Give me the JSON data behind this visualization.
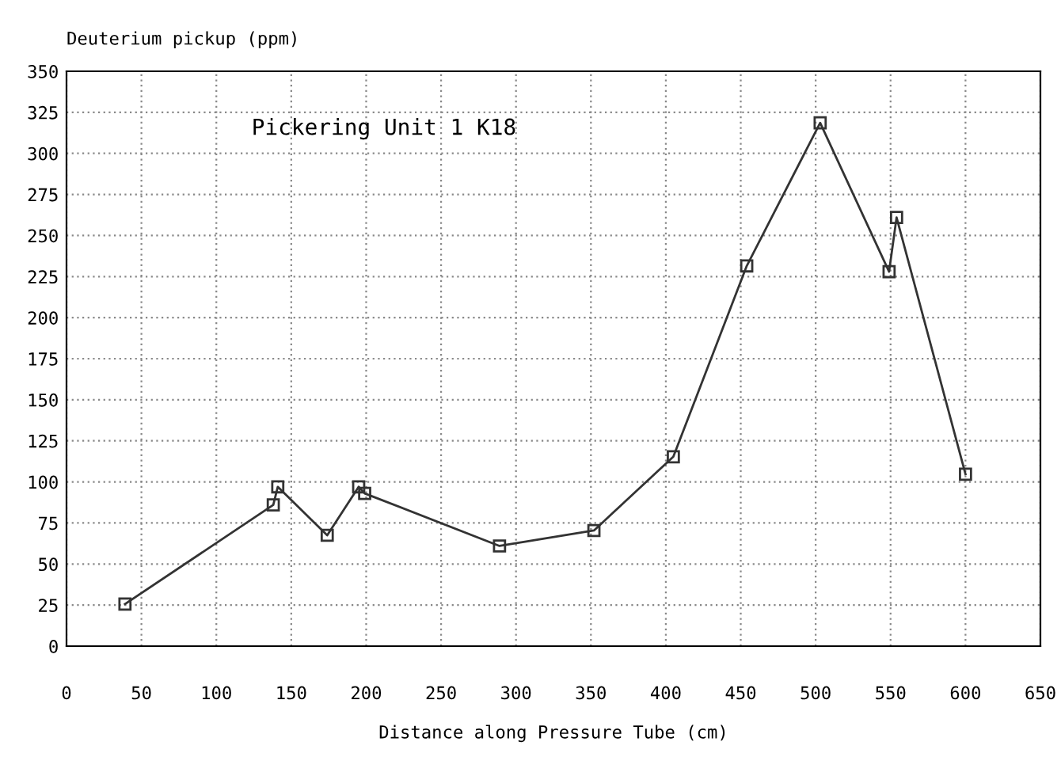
{
  "chart_data": {
    "type": "line",
    "ylabel": "Deuterium pickup (ppm)",
    "xlabel": "Distance along Pressure Tube (cm)",
    "annotations": [
      "Pickering Unit 1 K18"
    ],
    "x": [
      39,
      138,
      141,
      174,
      195,
      199,
      289,
      352,
      405,
      454,
      503,
      549,
      554,
      600
    ],
    "series": [
      {
        "color": "#333333",
        "values": [
          25.6,
          86,
          97,
          67.5,
          97,
          93,
          61,
          70.4,
          115.3,
          231.5,
          318.6,
          228,
          261,
          104.7
        ]
      }
    ],
    "xlim": [
      0,
      650
    ],
    "xticks": [
      0,
      50,
      100,
      150,
      200,
      250,
      300,
      350,
      400,
      450,
      500,
      550,
      600,
      650
    ],
    "ylim": [
      0,
      350
    ],
    "yticks": [
      0,
      25,
      50,
      75,
      100,
      125,
      150,
      175,
      200,
      225,
      250,
      275,
      300,
      325,
      350
    ],
    "grid": true,
    "marker": "square",
    "line_style": "solid"
  }
}
